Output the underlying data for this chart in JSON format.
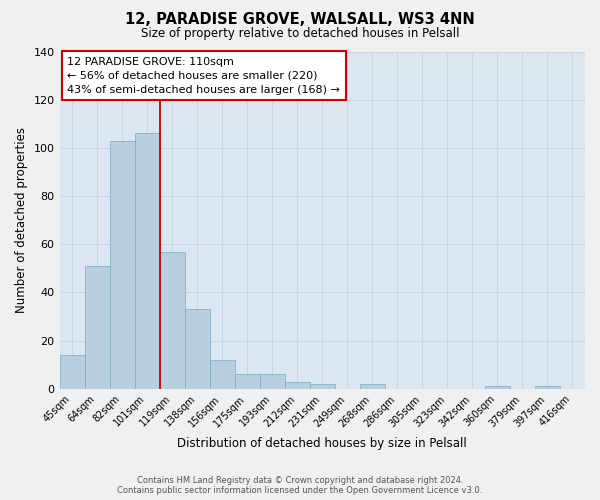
{
  "title": "12, PARADISE GROVE, WALSALL, WS3 4NN",
  "subtitle": "Size of property relative to detached houses in Pelsall",
  "xlabel": "Distribution of detached houses by size in Pelsall",
  "ylabel": "Number of detached properties",
  "bin_labels": [
    "45sqm",
    "64sqm",
    "82sqm",
    "101sqm",
    "119sqm",
    "138sqm",
    "156sqm",
    "175sqm",
    "193sqm",
    "212sqm",
    "231sqm",
    "249sqm",
    "268sqm",
    "286sqm",
    "305sqm",
    "323sqm",
    "342sqm",
    "360sqm",
    "379sqm",
    "397sqm",
    "416sqm"
  ],
  "bar_heights": [
    14,
    51,
    103,
    106,
    57,
    33,
    12,
    6,
    6,
    3,
    2,
    0,
    2,
    0,
    0,
    0,
    0,
    1,
    0,
    1,
    0
  ],
  "bar_color": "#b8cfe0",
  "bar_edge_color": "#7aaabf",
  "vline_x_index": 3.5,
  "vline_color": "#cc0000",
  "ylim": [
    0,
    140
  ],
  "yticks": [
    0,
    20,
    40,
    60,
    80,
    100,
    120,
    140
  ],
  "annotation_title": "12 PARADISE GROVE: 110sqm",
  "annotation_line1": "← 56% of detached houses are smaller (220)",
  "annotation_line2": "43% of semi-detached houses are larger (168) →",
  "annotation_box_color": "#ffffff",
  "annotation_box_edge": "#cc0000",
  "footer_line1": "Contains HM Land Registry data © Crown copyright and database right 2024.",
  "footer_line2": "Contains public sector information licensed under the Open Government Licence v3.0.",
  "grid_color": "#c8d4e4",
  "bg_color": "#dce6f0",
  "fig_bg_color": "#f0f0f0"
}
